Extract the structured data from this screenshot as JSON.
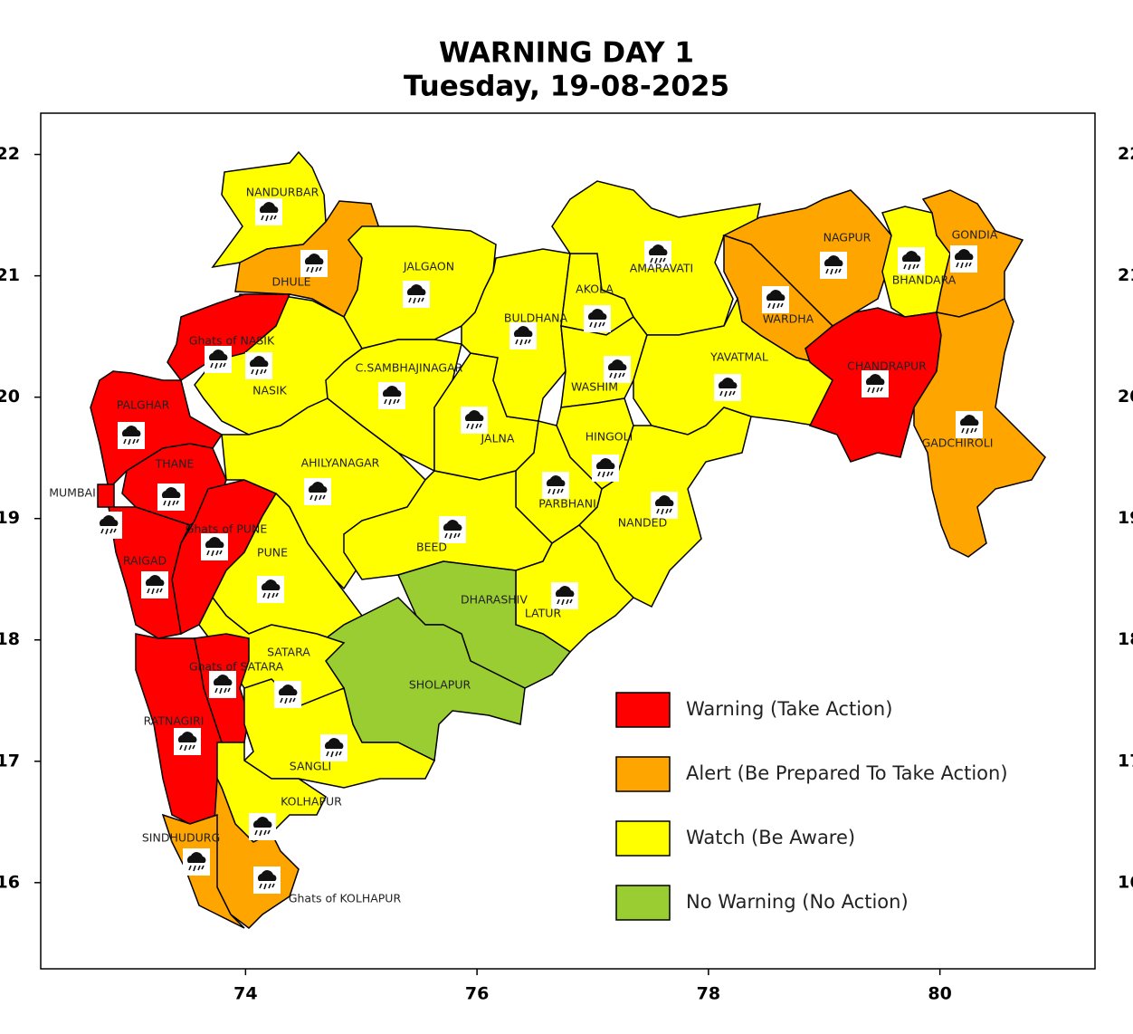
{
  "chart_data": {
    "type": "map",
    "title": "WARNING DAY 1",
    "subtitle": "Tuesday, 19-08-2025",
    "xlim": [
      72.23,
      81.34
    ],
    "xticks": [
      74,
      76,
      78,
      80
    ],
    "ylim": [
      15.29,
      22.34
    ],
    "yticks": [
      16,
      17,
      18,
      19,
      20,
      21,
      22
    ],
    "y2lim": [
      15.29,
      22.34
    ],
    "y2ticks": [
      16,
      17,
      18,
      19,
      20,
      21,
      22
    ],
    "districts": [
      {
        "name": "NANDURBAR",
        "color": "#ffff00"
      },
      {
        "name": "DHULE",
        "color": "#ffa500"
      },
      {
        "name": "JALGAON",
        "color": "#ffff00"
      },
      {
        "name": "NASIK",
        "color": "#ffff00"
      },
      {
        "name": "Ghats of NASIK",
        "color": "#ff0000"
      },
      {
        "name": "PALGHAR",
        "color": "#ff0000"
      },
      {
        "name": "THANE",
        "color": "#ff0000"
      },
      {
        "name": "MUMBAI",
        "color": "#ff0000"
      },
      {
        "name": "Ghats of PUNE",
        "color": "#ff0000"
      },
      {
        "name": "RAIGAD",
        "color": "#ff0000"
      },
      {
        "name": "PUNE",
        "color": "#ffff00"
      },
      {
        "name": "AHILYANAGAR",
        "color": "#ffff00"
      },
      {
        "name": "C.SAMBHAJINAGAR",
        "color": "#ffff00"
      },
      {
        "name": "JALNA",
        "color": "#ffff00"
      },
      {
        "name": "BULDHANA",
        "color": "#ffff00"
      },
      {
        "name": "AKOLA",
        "color": "#ffff00"
      },
      {
        "name": "WASHIM",
        "color": "#ffff00"
      },
      {
        "name": "AMARAVATI",
        "color": "#ffff00"
      },
      {
        "name": "NAGPUR",
        "color": "#ffa500"
      },
      {
        "name": "WARDHA",
        "color": "#ffa500"
      },
      {
        "name": "BHANDARA",
        "color": "#ffff00"
      },
      {
        "name": "GONDIA",
        "color": "#ffa500"
      },
      {
        "name": "YAVATMAL",
        "color": "#ffff00"
      },
      {
        "name": "CHANDRAPUR",
        "color": "#ff0000"
      },
      {
        "name": "GADCHIROLI",
        "color": "#ffa500"
      },
      {
        "name": "HINGOLI",
        "color": "#ffff00"
      },
      {
        "name": "PARBHANI",
        "color": "#ffff00"
      },
      {
        "name": "NANDED",
        "color": "#ffff00"
      },
      {
        "name": "BEED",
        "color": "#ffff00"
      },
      {
        "name": "LATUR",
        "color": "#ffff00"
      },
      {
        "name": "DHARASHIV",
        "color": "#9acd32"
      },
      {
        "name": "SHOLAPUR",
        "color": "#9acd32"
      },
      {
        "name": "SATARA",
        "color": "#ffff00"
      },
      {
        "name": "Ghats of SATARA",
        "color": "#ff0000"
      },
      {
        "name": "RATNAGIRI",
        "color": "#ff0000"
      },
      {
        "name": "SANGLI",
        "color": "#ffff00"
      },
      {
        "name": "KOLHAPUR",
        "color": "#ffff00"
      },
      {
        "name": "Ghats of KOLHAPUR",
        "color": "#ffa500"
      },
      {
        "name": "SINDHUDURG",
        "color": "#ffa500"
      }
    ],
    "legend": [
      {
        "label": "Warning (Take Action)",
        "color": "#ff0000"
      },
      {
        "label": "Alert (Be Prepared To Take Action)",
        "color": "#ffa500"
      },
      {
        "label": "Watch (Be Aware)",
        "color": "#ffff00"
      },
      {
        "label": "No Warning (No Action)",
        "color": "#9acd32"
      }
    ]
  }
}
